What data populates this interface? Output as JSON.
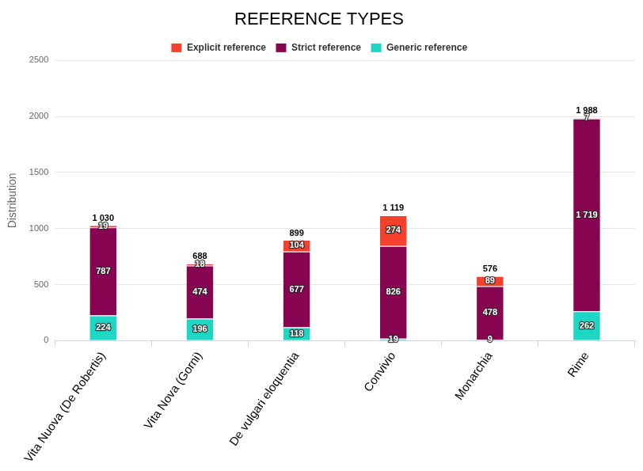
{
  "chart_data": {
    "type": "bar",
    "title": "REFERENCE TYPES",
    "y_label": "Distribution",
    "categories": [
      "Vita Nuova (De Robertis)",
      "Vita Nova (Gorni)",
      "De vulgari eloquentia",
      "Convivio",
      "Monarchia",
      "Rime"
    ],
    "series": [
      {
        "name": "Explicit reference",
        "color": "#f4402c",
        "values": [
          19,
          18,
          104,
          274,
          89,
          7
        ]
      },
      {
        "name": "Strict reference",
        "color": "#880552",
        "values": [
          787,
          474,
          677,
          826,
          478,
          1719
        ],
        "value_labels": [
          "787",
          "474",
          "677",
          "826",
          "478",
          "1 719"
        ]
      },
      {
        "name": "Generic reference",
        "color": "#1dd6c3",
        "values": [
          224,
          196,
          118,
          19,
          9,
          262
        ]
      }
    ],
    "totals": [
      1030,
      688,
      899,
      1119,
      576,
      1988
    ],
    "total_labels": [
      "1 030",
      "688",
      "899",
      "1 119",
      "576",
      "1 988"
    ],
    "ylim": [
      0,
      2500
    ],
    "yticks": [
      0,
      500,
      1000,
      1500,
      2000,
      2500
    ],
    "stacked": true,
    "data_labels": true,
    "legend": "top",
    "grid": true
  }
}
